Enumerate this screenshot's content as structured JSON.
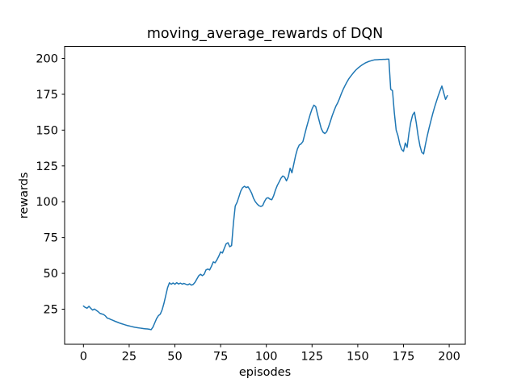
{
  "chart_data": {
    "type": "line",
    "title": "moving_average_rewards of DQN",
    "xlabel": "episodes",
    "ylabel": "rewards",
    "grid": false,
    "legend": false,
    "background": "#ffffff",
    "line_color": "#1f77b4",
    "xticks": [
      0,
      25,
      50,
      75,
      100,
      125,
      150,
      175,
      200
    ],
    "yticks": [
      25,
      50,
      75,
      100,
      125,
      150,
      175,
      200
    ],
    "xlim": [
      -10.3,
      208.8
    ],
    "ylim": [
      0.4,
      208.4
    ],
    "series": [
      {
        "name": "moving_average_rewards",
        "color": "#1f77b4",
        "x_start": 0,
        "x_step": 1,
        "y": [
          27.2,
          26.2,
          25.7,
          27.0,
          25.6,
          24.4,
          25.1,
          24.2,
          23.3,
          22.1,
          21.7,
          21.3,
          20.3,
          18.8,
          18.4,
          17.8,
          17.3,
          16.7,
          16.2,
          15.7,
          15.2,
          14.8,
          14.4,
          14.0,
          13.6,
          13.3,
          13.0,
          12.7,
          12.4,
          12.2,
          12.0,
          11.8,
          11.6,
          11.4,
          11.3,
          11.2,
          11.0,
          10.7,
          12.5,
          15.5,
          18.5,
          20.5,
          21.5,
          24.5,
          29.0,
          34.5,
          40.0,
          43.4,
          42.4,
          43.3,
          42.4,
          43.5,
          42.6,
          43.2,
          42.5,
          43.0,
          42.4,
          42.0,
          42.7,
          41.8,
          42.3,
          43.8,
          46.0,
          48.3,
          49.4,
          48.4,
          49.4,
          52.4,
          53.0,
          52.4,
          55.0,
          58.0,
          57.4,
          59.5,
          62.0,
          65.0,
          64.2,
          67.4,
          70.6,
          71.4,
          68.6,
          69.4,
          85.0,
          97.0,
          99.6,
          103.4,
          107.4,
          109.8,
          110.8,
          109.9,
          110.4,
          108.4,
          105.9,
          102.4,
          100.0,
          98.4,
          97.2,
          96.7,
          97.3,
          100.2,
          102.4,
          102.8,
          101.8,
          101.4,
          104.2,
          108.2,
          111.4,
          113.8,
          116.4,
          118.0,
          117.2,
          114.6,
          117.4,
          123.4,
          120.2,
          126.2,
          132.2,
          136.8,
          139.6,
          140.4,
          142.0,
          147.0,
          152.0,
          156.6,
          161.0,
          164.8,
          167.4,
          166.4,
          161.0,
          156.0,
          151.2,
          148.6,
          147.6,
          148.8,
          152.2,
          156.0,
          160.0,
          163.4,
          166.6,
          169.0,
          172.0,
          175.4,
          178.4,
          181.0,
          183.4,
          185.6,
          187.4,
          189.0,
          190.6,
          192.0,
          193.2,
          194.2,
          195.2,
          196.0,
          196.8,
          197.4,
          197.9,
          198.3,
          198.7,
          199.0,
          199.1,
          199.2,
          199.3,
          199.3,
          199.4,
          199.4,
          199.5,
          199.5,
          178.5,
          177.5,
          162.0,
          150.0,
          146.0,
          140.0,
          136.5,
          135.2,
          141.0,
          138.0,
          148.0,
          155.5,
          160.5,
          162.5,
          155.0,
          146.0,
          139.0,
          134.5,
          133.4,
          140.0,
          146.0,
          151.5,
          156.5,
          161.5,
          166.0,
          170.0,
          174.0,
          177.5,
          180.8,
          176.0,
          171.4,
          174.0
        ]
      }
    ]
  }
}
